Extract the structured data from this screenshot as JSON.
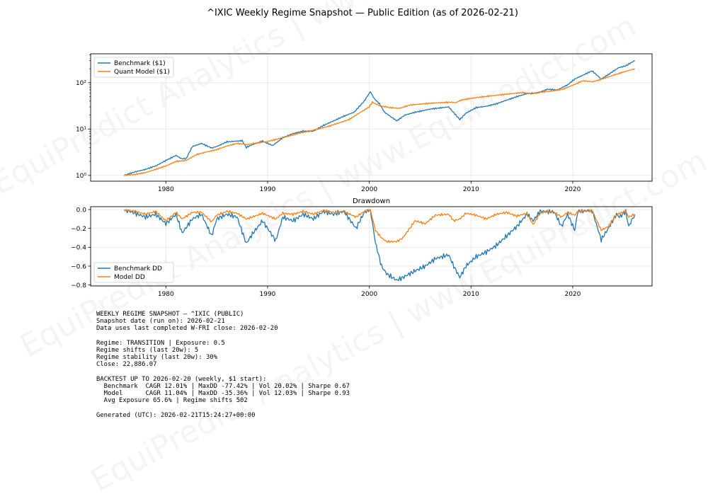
{
  "figure": {
    "title": "^IXIC Weekly Regime Snapshot — Public Edition (as of 2026-02-21)"
  },
  "watermark": {
    "text": "EquiPredict Analytics | www.EquiPredict.com"
  },
  "chart_data": [
    {
      "type": "line",
      "name": "equity-curve",
      "title": "",
      "xlabel": "",
      "ylabel": "",
      "yscale": "log",
      "xlim": [
        1972.6,
        2027.8
      ],
      "ylim": [
        0.75,
        420
      ],
      "x_ticks": [
        1980,
        1990,
        2000,
        2010,
        2020
      ],
      "x_tick_labels": [
        "1980",
        "1990",
        "2000",
        "2010",
        "2020"
      ],
      "y_ticks": [
        1,
        10,
        100
      ],
      "y_tick_labels": [
        "10⁰",
        "10¹",
        "10²"
      ],
      "grid": true,
      "legend": "top-left",
      "series": [
        {
          "name": "Benchmark ($1)",
          "color": "#1f77b4",
          "x": [
            1975.9,
            1977,
            1978,
            1979,
            1980,
            1981,
            1981.5,
            1982,
            1982.6,
            1983.5,
            1984.5,
            1985,
            1986,
            1987.5,
            1987.9,
            1988.5,
            1989.5,
            1990.5,
            1991.5,
            1992.5,
            1993.5,
            1994.5,
            1995.5,
            1996.5,
            1997.5,
            1998.5,
            1999.5,
            2000.1,
            2000.5,
            2001,
            2001.5,
            2002.7,
            2003.5,
            2004.5,
            2006,
            2007.8,
            2008.9,
            2009.5,
            2010.5,
            2011.5,
            2012.5,
            2013.5,
            2014.5,
            2015.5,
            2016.5,
            2017.5,
            2018.5,
            2019.5,
            2020.2,
            2021.9,
            2022.8,
            2023.5,
            2024.5,
            2025.2,
            2026.1
          ],
          "values": [
            1.0,
            1.2,
            1.35,
            1.6,
            2.1,
            2.7,
            2.3,
            2.3,
            4.2,
            4.9,
            3.9,
            4.2,
            5.3,
            5.6,
            4.0,
            4.6,
            5.5,
            4.4,
            6.5,
            8.0,
            9.0,
            9.0,
            12.0,
            15.0,
            19.0,
            23.0,
            40.0,
            64.0,
            45.0,
            35.0,
            23.0,
            15.0,
            20.0,
            23.0,
            27.0,
            30.0,
            16.0,
            22.0,
            29.0,
            31.0,
            35.0,
            42.0,
            50.0,
            58.0,
            60.0,
            72.0,
            70.0,
            90.0,
            120.0,
            180.0,
            120.0,
            150.0,
            210.0,
            230.0,
            300.0
          ]
        },
        {
          "name": "Quant Model ($1)",
          "color": "#ff7f0e",
          "x": [
            1975.9,
            1977,
            1978,
            1979,
            1980,
            1981,
            1982,
            1983,
            1984,
            1985,
            1986,
            1987,
            1988,
            1989,
            1990,
            1991,
            1992,
            1993,
            1994,
            1995,
            1996,
            1997,
            1998,
            1999,
            2000,
            2000.3,
            2001,
            2002,
            2003,
            2004,
            2006,
            2008,
            2008.5,
            2009,
            2010,
            2011,
            2012,
            2013,
            2014,
            2015,
            2016,
            2017,
            2018,
            2019,
            2020,
            2021,
            2022,
            2023,
            2024,
            2025,
            2026.1
          ],
          "values": [
            1.0,
            1.05,
            1.15,
            1.35,
            1.6,
            2.0,
            2.1,
            2.8,
            3.2,
            3.6,
            4.3,
            4.9,
            4.6,
            5.0,
            5.4,
            6.1,
            7.0,
            8.0,
            8.9,
            10.0,
            11.5,
            13.5,
            16.0,
            22.0,
            30.0,
            38.0,
            32.0,
            29.0,
            28.0,
            33.0,
            36.0,
            38.0,
            37.0,
            42.0,
            46.0,
            49.0,
            52.0,
            55.0,
            58.0,
            61.0,
            58.0,
            63.0,
            66.0,
            72.0,
            88.0,
            110.0,
            105.0,
            122.0,
            145.0,
            170.0,
            200.0
          ]
        }
      ]
    },
    {
      "type": "line",
      "name": "drawdown",
      "title": "Drawdown",
      "xlabel": "",
      "ylabel": "",
      "xlim": [
        1972.6,
        2027.8
      ],
      "ylim": [
        -0.81,
        0.03
      ],
      "x_ticks": [
        1980,
        1990,
        2000,
        2010,
        2020
      ],
      "x_tick_labels": [
        "1980",
        "1990",
        "2000",
        "2010",
        "2020"
      ],
      "y_ticks": [
        0.0,
        -0.2,
        -0.4,
        -0.6,
        -0.8
      ],
      "y_tick_labels": [
        "0.0",
        "−0.2",
        "−0.4",
        "−0.6",
        "−0.8"
      ],
      "grid": true,
      "legend": "bottom-left",
      "series": [
        {
          "name": "Benchmark DD",
          "color": "#1f77b4",
          "x": [
            1975.9,
            1977,
            1978,
            1979,
            1980,
            1981,
            1981.6,
            1982.6,
            1983.5,
            1984.5,
            1985,
            1986,
            1987,
            1987.9,
            1988.5,
            1989.5,
            1990.8,
            1991.5,
            1992.5,
            1993.5,
            1994.5,
            1995.5,
            1996.5,
            1997.5,
            1998.7,
            1999.5,
            2000.1,
            2000.6,
            2001.2,
            2001.7,
            2002.7,
            2003.3,
            2004.5,
            2005.5,
            2006.5,
            2007.8,
            2008.3,
            2008.9,
            2009.5,
            2010.5,
            2011.5,
            2012.5,
            2013.5,
            2014.5,
            2015.5,
            2016.1,
            2016.8,
            2017.5,
            2018.2,
            2018.9,
            2019.5,
            2020.2,
            2020.5,
            2021.9,
            2022.8,
            2023.5,
            2024.3,
            2024.6,
            2025.2,
            2025.5,
            2026.1
          ],
          "values": [
            0.0,
            -0.04,
            -0.08,
            -0.05,
            -0.15,
            -0.05,
            -0.25,
            -0.1,
            -0.05,
            -0.28,
            -0.1,
            -0.05,
            -0.08,
            -0.36,
            -0.26,
            -0.12,
            -0.33,
            -0.08,
            -0.12,
            -0.05,
            -0.1,
            -0.02,
            -0.05,
            -0.02,
            -0.2,
            -0.03,
            0.0,
            -0.35,
            -0.6,
            -0.68,
            -0.75,
            -0.72,
            -0.65,
            -0.6,
            -0.52,
            -0.48,
            -0.6,
            -0.72,
            -0.6,
            -0.5,
            -0.45,
            -0.38,
            -0.28,
            -0.18,
            -0.05,
            -0.12,
            -0.02,
            -0.02,
            -0.03,
            -0.18,
            -0.05,
            -0.22,
            -0.02,
            -0.01,
            -0.32,
            -0.2,
            -0.05,
            -0.08,
            -0.02,
            -0.18,
            -0.05
          ]
        },
        {
          "name": "Model DD",
          "color": "#ff7f0e",
          "x": [
            1975.9,
            1977,
            1978,
            1979,
            1980,
            1981,
            1981.6,
            1982.6,
            1983.5,
            1984.5,
            1985,
            1986,
            1987,
            1987.9,
            1988.5,
            1989.5,
            1990.8,
            1991.5,
            1992.5,
            1993.5,
            1994.5,
            1995.5,
            1996.5,
            1997.5,
            1998.7,
            1999.5,
            2000.1,
            2000.6,
            2001.2,
            2001.7,
            2002.7,
            2003.3,
            2004.5,
            2005.5,
            2006.5,
            2007.8,
            2008.3,
            2008.9,
            2009.5,
            2010.5,
            2011.5,
            2012.5,
            2013.5,
            2014.5,
            2015.5,
            2016.1,
            2016.8,
            2017.5,
            2018.2,
            2018.9,
            2019.5,
            2020.2,
            2020.5,
            2021.9,
            2022.8,
            2023.5,
            2024.3,
            2024.6,
            2025.2,
            2025.5,
            2026.1
          ],
          "values": [
            0.0,
            -0.02,
            -0.05,
            -0.02,
            -0.12,
            -0.03,
            -0.1,
            -0.03,
            -0.03,
            -0.13,
            -0.06,
            -0.02,
            -0.04,
            -0.1,
            -0.08,
            -0.04,
            -0.1,
            -0.04,
            -0.05,
            -0.02,
            -0.05,
            -0.01,
            -0.03,
            -0.02,
            -0.08,
            -0.02,
            0.0,
            -0.22,
            -0.3,
            -0.34,
            -0.34,
            -0.3,
            -0.12,
            -0.15,
            -0.06,
            -0.05,
            -0.12,
            -0.1,
            -0.04,
            -0.06,
            -0.1,
            -0.05,
            -0.03,
            -0.07,
            -0.04,
            -0.16,
            -0.04,
            -0.02,
            -0.03,
            -0.08,
            -0.03,
            -0.06,
            -0.02,
            -0.01,
            -0.22,
            -0.18,
            -0.06,
            -0.04,
            -0.02,
            -0.08,
            -0.05
          ]
        }
      ]
    }
  ],
  "summary": {
    "lines": [
      "WEEKLY REGIME SNAPSHOT — ^IXIC (PUBLIC)",
      "Snapshot date (run on): 2026-02-21",
      "Data uses last completed W-FRI close: 2026-02-20",
      "",
      "Regime: TRANSITION | Exposure: 0.5",
      "Regime shifts (last 20w): 5",
      "Regime stability (last 20w): 30%",
      "Close: 22,886.07",
      "",
      "BACKTEST UP TO 2026-02-20 (weekly, $1 start):",
      "  Benchmark  CAGR 12.01% | MaxDD -77.42% | Vol 20.02% | Sharpe 0.67",
      "  Model      CAGR 11.04% | MaxDD -35.36% | Vol 12.03% | Sharpe 0.93",
      "  Avg Exposure 65.6% | Regime shifts 502",
      "",
      "Generated (UTC): 2026-02-21T15:24:27+00:00"
    ]
  }
}
